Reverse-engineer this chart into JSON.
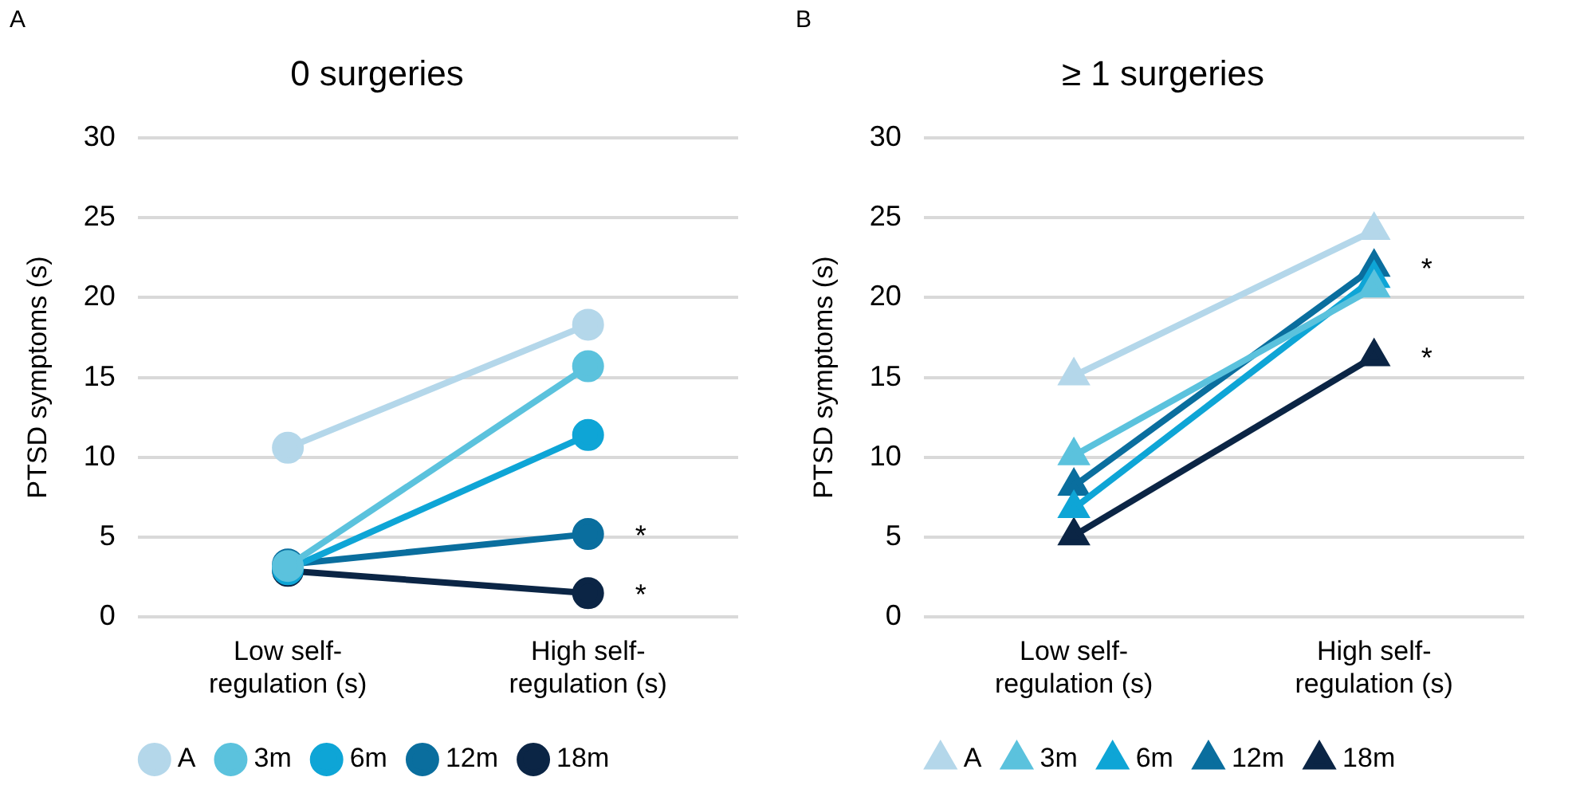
{
  "chart_data": [
    {
      "type": "line",
      "title": "0 surgeries",
      "ylabel": "PTSD symptoms (s)",
      "categories": [
        "Low self-regulation (s)",
        "High self-regulation (s)"
      ],
      "marker": "circle",
      "grid": "y",
      "legend": "bottom",
      "ylim": [
        0,
        30
      ],
      "yticks": [
        0,
        5,
        10,
        15,
        20,
        25,
        30
      ],
      "series": [
        {
          "name": "A",
          "color": "#b4d7ea",
          "values": [
            10.6,
            18.3
          ]
        },
        {
          "name": "3m",
          "color": "#5bc2dd",
          "values": [
            3.2,
            15.7
          ]
        },
        {
          "name": "6m",
          "color": "#0ea5d6",
          "values": [
            3.0,
            11.4
          ]
        },
        {
          "name": "12m",
          "color": "#0a6e9e",
          "values": [
            3.3,
            5.2
          ]
        },
        {
          "name": "18m",
          "color": "#0b2545",
          "values": [
            2.9,
            1.5
          ]
        }
      ],
      "annotations": [
        "A",
        {
          "text": "*",
          "x": "High self-regulation (s)",
          "y": 5.2
        },
        {
          "text": "*",
          "x": "High self-regulation (s)",
          "y": 1.5
        }
      ]
    },
    {
      "type": "line",
      "title": "≥ 1 surgeries",
      "ylabel": "PTSD symptoms (s)",
      "categories": [
        "Low self-regulation (s)",
        "High self-regulation (s)"
      ],
      "marker": "triangle",
      "grid": "y",
      "legend": "bottom",
      "ylim": [
        0,
        30
      ],
      "yticks": [
        0,
        5,
        10,
        15,
        20,
        25,
        30
      ],
      "series": [
        {
          "name": "A",
          "color": "#b4d7ea",
          "values": [
            15.1,
            24.2
          ]
        },
        {
          "name": "3m",
          "color": "#5bc2dd",
          "values": [
            10.1,
            20.6
          ]
        },
        {
          "name": "6m",
          "color": "#0ea5d6",
          "values": [
            6.8,
            21.2
          ]
        },
        {
          "name": "12m",
          "color": "#0a6e9e",
          "values": [
            8.2,
            21.9
          ]
        },
        {
          "name": "18m",
          "color": "#0b2545",
          "values": [
            5.1,
            16.3
          ]
        }
      ],
      "annotations": [
        "B",
        {
          "text": "*",
          "x": "High self-regulation (s)",
          "y": 21.9
        },
        {
          "text": "*",
          "x": "High self-regulation (s)",
          "y": 16.3
        }
      ]
    }
  ]
}
